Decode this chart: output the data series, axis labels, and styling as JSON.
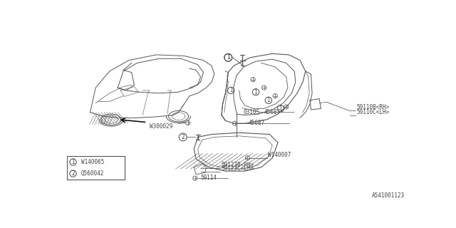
{
  "background_color": "#ffffff",
  "line_color": "#555555",
  "text_color": "#444444",
  "diagram_id": "A541001123",
  "legend_items": [
    {
      "num": "1",
      "part": "W140065"
    },
    {
      "num": "2",
      "part": "Q560042"
    }
  ]
}
